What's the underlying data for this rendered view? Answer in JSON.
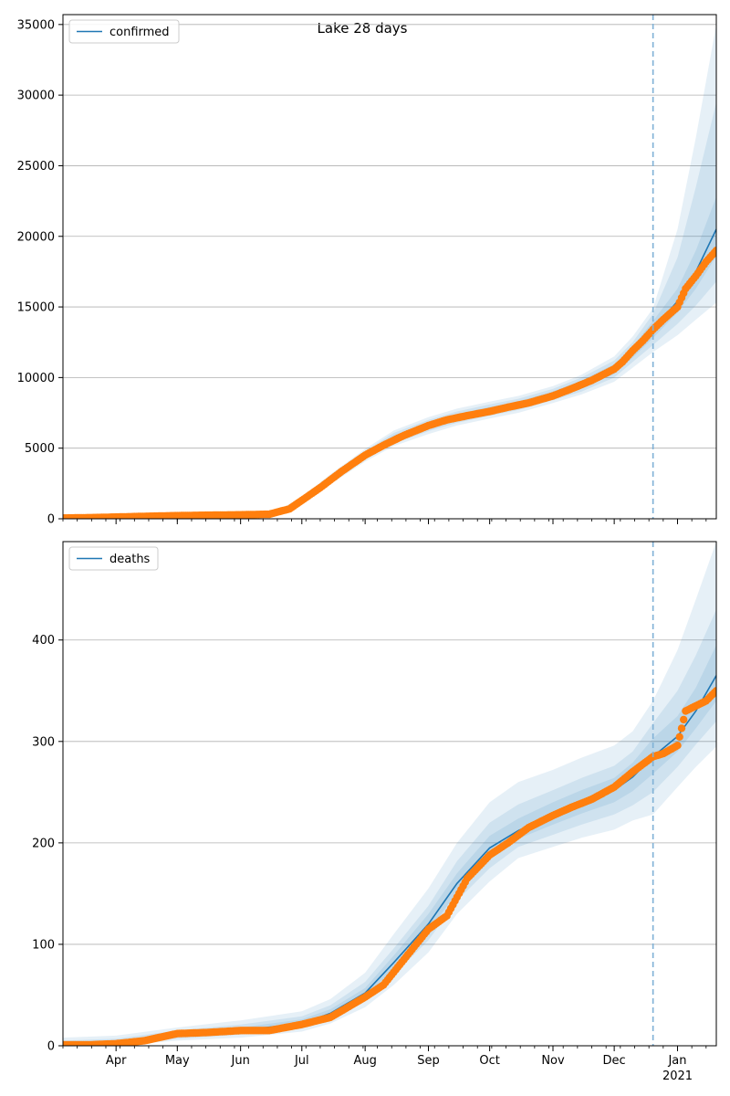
{
  "figure": {
    "title": "Lake 28 days"
  },
  "colors": {
    "line": "#1f77b4",
    "points": "#ff7f0e",
    "band": "#1f77b4",
    "grid": "#b0b0b0",
    "forecast_line": "#7fb1d6"
  },
  "chart_data": [
    {
      "type": "line",
      "title": "Lake 28 days",
      "xaxis": {
        "type": "date",
        "range": [
          "2020-03-06",
          "2021-01-20"
        ],
        "tick_labels": [
          {
            "date": "2020-04-01",
            "label": "Apr"
          },
          {
            "date": "2020-05-01",
            "label": "May"
          },
          {
            "date": "2020-06-01",
            "label": "Jun"
          },
          {
            "date": "2020-07-01",
            "label": "Jul"
          },
          {
            "date": "2020-08-01",
            "label": "Aug"
          },
          {
            "date": "2020-09-01",
            "label": "Sep"
          },
          {
            "date": "2020-10-01",
            "label": "Oct"
          },
          {
            "date": "2020-11-01",
            "label": "Nov"
          },
          {
            "date": "2020-12-01",
            "label": "Dec"
          },
          {
            "date": "2021-01-01",
            "label": "Jan",
            "sublabel": "2021"
          }
        ],
        "tick_labels_visible": false
      },
      "ylim": [
        0,
        35700
      ],
      "yticks": [
        0,
        5000,
        10000,
        15000,
        20000,
        25000,
        30000,
        35000
      ],
      "grid": "horizontal",
      "legend": {
        "position": "top-left",
        "label": "confirmed"
      },
      "forecast_start": "2020-12-20",
      "model": {
        "name": "confirmed",
        "x": [
          "2020-03-06",
          "2020-04-01",
          "2020-05-01",
          "2020-06-01",
          "2020-06-20",
          "2020-07-01",
          "2020-07-15",
          "2020-08-01",
          "2020-08-15",
          "2020-09-01",
          "2020-09-15",
          "2020-10-01",
          "2020-10-15",
          "2020-11-01",
          "2020-11-15",
          "2020-12-01",
          "2020-12-10",
          "2020-12-20",
          "2021-01-01",
          "2021-01-10",
          "2021-01-20"
        ],
        "y": [
          50,
          100,
          200,
          280,
          500,
          1300,
          2800,
          4500,
          5700,
          6600,
          7200,
          7700,
          8100,
          8800,
          9500,
          10600,
          11800,
          13400,
          15400,
          17500,
          20500
        ],
        "bands": [
          {
            "lower": [
              0,
              40,
              120,
              180,
              350,
              1050,
              2450,
              4050,
              5150,
              6000,
              6600,
              7100,
              7500,
              8200,
              8800,
              9700,
              10700,
              11800,
              13000,
              14100,
              15300
            ],
            "upper": [
              100,
              160,
              280,
              380,
              650,
              1550,
              3150,
              4950,
              6250,
              7200,
              7800,
              8300,
              8700,
              9400,
              10200,
              11500,
              12900,
              14900,
              20500,
              27000,
              35000
            ]
          },
          {
            "lower": [
              10,
              60,
              150,
              220,
              400,
              1130,
              2570,
              4200,
              5320,
              6200,
              6800,
              7300,
              7700,
              8400,
              9000,
              10000,
              11100,
              12300,
              13800,
              15100,
              16800
            ],
            "upper": [
              90,
              140,
              250,
              340,
              600,
              1470,
              3030,
              4800,
              6080,
              7000,
              7600,
              8100,
              8500,
              9200,
              10000,
              11200,
              12500,
              14500,
              18500,
              23500,
              29500
            ]
          },
          {
            "lower": [
              20,
              75,
              170,
              245,
              440,
              1200,
              2670,
              4330,
              5480,
              6380,
              6980,
              7480,
              7880,
              8580,
              9200,
              10250,
              11400,
              12800,
              14600,
              16300,
              18600
            ],
            "upper": [
              80,
              125,
              230,
              315,
              560,
              1400,
              2930,
              4670,
              5920,
              6820,
              7420,
              7920,
              8320,
              9020,
              9800,
              10950,
              12200,
              14000,
              16300,
              19000,
              22800
            ]
          }
        ]
      },
      "observed": {
        "name": "observed confirmed",
        "x": [
          "2020-03-06",
          "2020-03-20",
          "2020-04-01",
          "2020-04-15",
          "2020-05-01",
          "2020-05-15",
          "2020-06-01",
          "2020-06-15",
          "2020-06-25",
          "2020-07-01",
          "2020-07-10",
          "2020-07-20",
          "2020-08-01",
          "2020-08-10",
          "2020-08-20",
          "2020-09-01",
          "2020-09-10",
          "2020-09-20",
          "2020-10-01",
          "2020-10-10",
          "2020-10-20",
          "2020-11-01",
          "2020-11-10",
          "2020-11-20",
          "2020-12-01",
          "2020-12-05",
          "2020-12-10",
          "2020-12-15",
          "2020-12-20",
          "2020-12-25",
          "2021-01-01",
          "2021-01-05",
          "2021-01-10",
          "2021-01-15",
          "2021-01-20"
        ],
        "y": [
          50,
          80,
          120,
          170,
          220,
          250,
          280,
          320,
          700,
          1300,
          2200,
          3300,
          4500,
          5200,
          5900,
          6600,
          7000,
          7300,
          7600,
          7900,
          8200,
          8700,
          9200,
          9800,
          10600,
          11100,
          11900,
          12600,
          13400,
          14100,
          15000,
          16300,
          17200,
          18200,
          19000
        ]
      }
    },
    {
      "type": "line",
      "xaxis": {
        "type": "date",
        "range": [
          "2020-03-06",
          "2021-01-20"
        ],
        "tick_labels": [
          {
            "date": "2020-04-01",
            "label": "Apr"
          },
          {
            "date": "2020-05-01",
            "label": "May"
          },
          {
            "date": "2020-06-01",
            "label": "Jun"
          },
          {
            "date": "2020-07-01",
            "label": "Jul"
          },
          {
            "date": "2020-08-01",
            "label": "Aug"
          },
          {
            "date": "2020-09-01",
            "label": "Sep"
          },
          {
            "date": "2020-10-01",
            "label": "Oct"
          },
          {
            "date": "2020-11-01",
            "label": "Nov"
          },
          {
            "date": "2020-12-01",
            "label": "Dec"
          },
          {
            "date": "2021-01-01",
            "label": "Jan",
            "sublabel": "2021"
          }
        ],
        "tick_labels_visible": true
      },
      "ylim": [
        0,
        497
      ],
      "yticks": [
        0,
        100,
        200,
        300,
        400
      ],
      "grid": "horizontal",
      "legend": {
        "position": "top-left",
        "label": "deaths"
      },
      "forecast_start": "2020-12-20",
      "model": {
        "name": "deaths",
        "x": [
          "2020-03-06",
          "2020-04-01",
          "2020-05-01",
          "2020-06-01",
          "2020-07-01",
          "2020-07-15",
          "2020-08-01",
          "2020-08-15",
          "2020-09-01",
          "2020-09-15",
          "2020-10-01",
          "2020-10-15",
          "2020-11-01",
          "2020-11-15",
          "2020-12-01",
          "2020-12-10",
          "2020-12-20",
          "2021-01-01",
          "2021-01-10",
          "2021-01-20"
        ],
        "y": [
          1,
          2,
          11,
          15,
          22,
          32,
          52,
          82,
          120,
          160,
          195,
          212,
          228,
          240,
          252,
          265,
          285,
          305,
          330,
          365
        ],
        "bands": [
          {
            "lower": [
              0,
              0,
              5,
              8,
              14,
              22,
              38,
              60,
              92,
              130,
              162,
              185,
              196,
              205,
              213,
              222,
              228,
              255,
              275,
              295
            ],
            "upper": [
              8,
              10,
              18,
              25,
              34,
              46,
              72,
              110,
              155,
              200,
              240,
              260,
              272,
              284,
              296,
              310,
              340,
              390,
              440,
              497
            ]
          },
          {
            "lower": [
              0,
              1,
              7,
              11,
              17,
              26,
              44,
              70,
              104,
              143,
              175,
              196,
              208,
              218,
              228,
              237,
              250,
              275,
              297,
              320
            ],
            "upper": [
              5,
              7,
              15,
              21,
              29,
              40,
              63,
              96,
              138,
              182,
              220,
              238,
              252,
              264,
              276,
              290,
              318,
              350,
              385,
              430
            ]
          },
          {
            "lower": [
              0,
              1,
              9,
              13,
              19,
              29,
              48,
              76,
              112,
              152,
              185,
              204,
              218,
              229,
              240,
              251,
              268,
              290,
              313,
              340
            ],
            "upper": [
              3,
              4,
              13,
              18,
              26,
              36,
              57,
              89,
              130,
              170,
              207,
              224,
              240,
              252,
              264,
              279,
              303,
              325,
              353,
              395
            ]
          }
        ]
      },
      "observed": {
        "name": "observed deaths",
        "x": [
          "2020-03-06",
          "2020-03-20",
          "2020-04-01",
          "2020-04-15",
          "2020-05-01",
          "2020-05-15",
          "2020-06-01",
          "2020-06-15",
          "2020-07-01",
          "2020-07-15",
          "2020-08-01",
          "2020-08-10",
          "2020-08-20",
          "2020-09-01",
          "2020-09-10",
          "2020-09-20",
          "2020-10-01",
          "2020-10-10",
          "2020-10-20",
          "2020-11-01",
          "2020-11-10",
          "2020-11-20",
          "2020-12-01",
          "2020-12-10",
          "2020-12-20",
          "2020-12-25",
          "2021-01-01",
          "2021-01-05",
          "2021-01-10",
          "2021-01-15",
          "2021-01-20"
        ],
        "y": [
          1,
          1,
          2,
          5,
          12,
          13,
          15,
          15,
          21,
          28,
          48,
          60,
          85,
          115,
          128,
          165,
          188,
          200,
          215,
          227,
          235,
          243,
          255,
          270,
          285,
          288,
          296,
          330,
          335,
          340,
          350
        ]
      }
    }
  ]
}
